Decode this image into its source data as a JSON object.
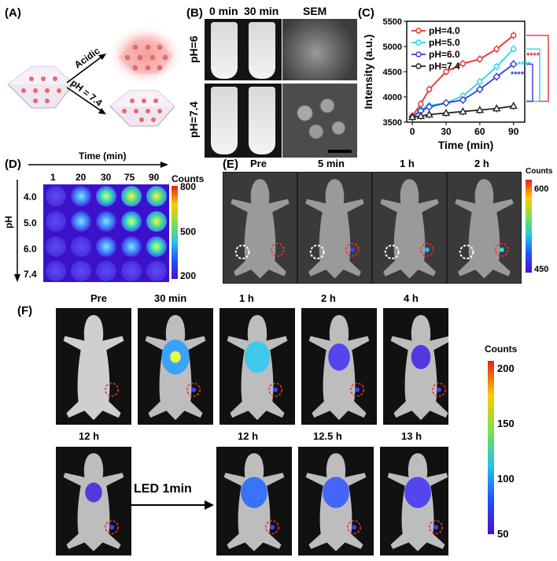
{
  "panels": {
    "A": {
      "label": "(A)",
      "acidic": "Acidic",
      "neutral": "pH = 7.4"
    },
    "B": {
      "label": "(B)",
      "col_headers": [
        "0 min",
        "30 min",
        "SEM"
      ],
      "row_headers": [
        "pH=6",
        "pH=7.4"
      ]
    },
    "C": {
      "label": "(C)"
    },
    "D": {
      "label": "(D)",
      "time_title": "Time (min)",
      "times": [
        "1",
        "20",
        "30",
        "75",
        "90"
      ],
      "ph_title": "pH",
      "phs": [
        "4.0",
        "5.0",
        "6.0",
        "7.4"
      ],
      "colorbar": {
        "title": "Counts",
        "ticks": [
          "800",
          "500",
          "200"
        ]
      }
    },
    "E": {
      "label": "(E)",
      "times": [
        "Pre",
        "5 min",
        "1 h",
        "2 h"
      ],
      "colorbar": {
        "title": "Counts",
        "ticks": [
          "600",
          "450"
        ]
      }
    },
    "F": {
      "label": "(F)",
      "top_times": [
        "Pre",
        "30 min",
        "1 h",
        "2 h",
        "4 h"
      ],
      "bottom_times": [
        "12 h",
        "12 h",
        "12.5 h",
        "13 h"
      ],
      "led": "LED 1min",
      "colorbar": {
        "title": "Counts",
        "ticks": [
          "200",
          "150",
          "100",
          "50"
        ]
      }
    }
  },
  "chart_data": {
    "type": "line",
    "xlabel": "Time (min)",
    "ylabel": "Intensity (a.u.)",
    "xlim": [
      -5,
      100
    ],
    "ylim": [
      3500,
      5500
    ],
    "xticks": [
      "0",
      "30",
      "60",
      "90"
    ],
    "yticks": [
      "3500",
      "4000",
      "4500",
      "5000",
      "5500"
    ],
    "x": [
      0,
      7.5,
      15,
      30,
      45,
      60,
      75,
      90
    ],
    "series": [
      {
        "name": "pH=4.0",
        "color": "#e8312f",
        "marker": "circle",
        "values": [
          3620,
          3860,
          4150,
          4500,
          4660,
          4750,
          4950,
          5220
        ]
      },
      {
        "name": "pH=5.0",
        "color": "#25d7e8",
        "marker": "circle",
        "values": [
          3600,
          3750,
          3830,
          3880,
          4020,
          4300,
          4600,
          4950
        ]
      },
      {
        "name": "pH=6.0",
        "color": "#3a3ad8",
        "marker": "diamond",
        "values": [
          3600,
          3720,
          3800,
          3880,
          3940,
          4150,
          4400,
          4650
        ]
      },
      {
        "name": "pH=7.4",
        "color": "#222222",
        "marker": "triangle",
        "values": [
          3600,
          3620,
          3650,
          3680,
          3710,
          3740,
          3770,
          3820
        ]
      }
    ],
    "annotations": [
      "****",
      "****",
      "****"
    ],
    "legend": "top-left"
  },
  "colors": {
    "acid_glow": "#ff7f7f",
    "particle": "#e86a6a",
    "scale_bar": "#000000"
  }
}
